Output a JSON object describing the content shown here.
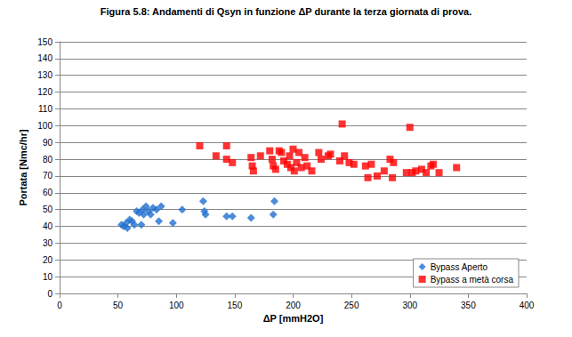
{
  "chart_data": {
    "type": "scatter",
    "title": "Figura 5.8: Andamenti di Qsyn in funzione ΔP durante la terza giornata di prova.",
    "x_label": "ΔP [mmH2O]",
    "y_label": "Portata [Nmc/hr]",
    "xlim": [
      0,
      400
    ],
    "xticks": [
      0,
      50,
      100,
      150,
      200,
      250,
      300,
      350,
      400
    ],
    "ylim": [
      0,
      150
    ],
    "yticks": [
      0,
      10,
      20,
      30,
      40,
      50,
      60,
      70,
      80,
      90,
      100,
      110,
      120,
      130,
      140,
      150
    ],
    "grid": true,
    "legend": "lower right",
    "series": [
      {
        "name": "Bypass Aperto",
        "color": "#1F6FCF",
        "marker": "diamond",
        "x": [
          53,
          55,
          57,
          58,
          60,
          62,
          64,
          66,
          68,
          70,
          71,
          72,
          74,
          76,
          78,
          80,
          83,
          85,
          87,
          97,
          105,
          123,
          124,
          125,
          143,
          148,
          164,
          183,
          184
        ],
        "values": [
          41,
          40,
          42,
          39,
          44,
          43,
          41,
          49,
          48,
          41,
          50,
          47,
          52,
          49,
          47,
          51,
          50,
          43,
          52,
          42,
          50,
          55,
          49,
          47,
          46,
          46,
          45,
          47,
          55
        ]
      },
      {
        "name": "Bypass a metà corsa",
        "color": "#FF0000",
        "marker": "square",
        "x": [
          120,
          134,
          143,
          143,
          148,
          164,
          165,
          166,
          172,
          180,
          182,
          183,
          185,
          188,
          190,
          192,
          195,
          197,
          198,
          200,
          201,
          203,
          205,
          207,
          210,
          212,
          216,
          222,
          224,
          230,
          232,
          240,
          242,
          244,
          248,
          252,
          262,
          264,
          267,
          272,
          278,
          283,
          285,
          286,
          297,
          300,
          302,
          305,
          310,
          314,
          318,
          320,
          325,
          340
        ],
        "values": [
          88,
          82,
          88,
          80,
          78,
          81,
          76,
          73,
          82,
          85,
          80,
          76,
          74,
          85,
          84,
          79,
          77,
          82,
          75,
          86,
          73,
          78,
          84,
          75,
          81,
          76,
          73,
          84,
          80,
          82,
          83,
          79,
          101,
          82,
          78,
          77,
          76,
          69,
          77,
          70,
          73,
          80,
          69,
          78,
          72,
          99,
          72,
          73,
          74,
          72,
          76,
          77,
          72,
          75
        ]
      }
    ]
  }
}
